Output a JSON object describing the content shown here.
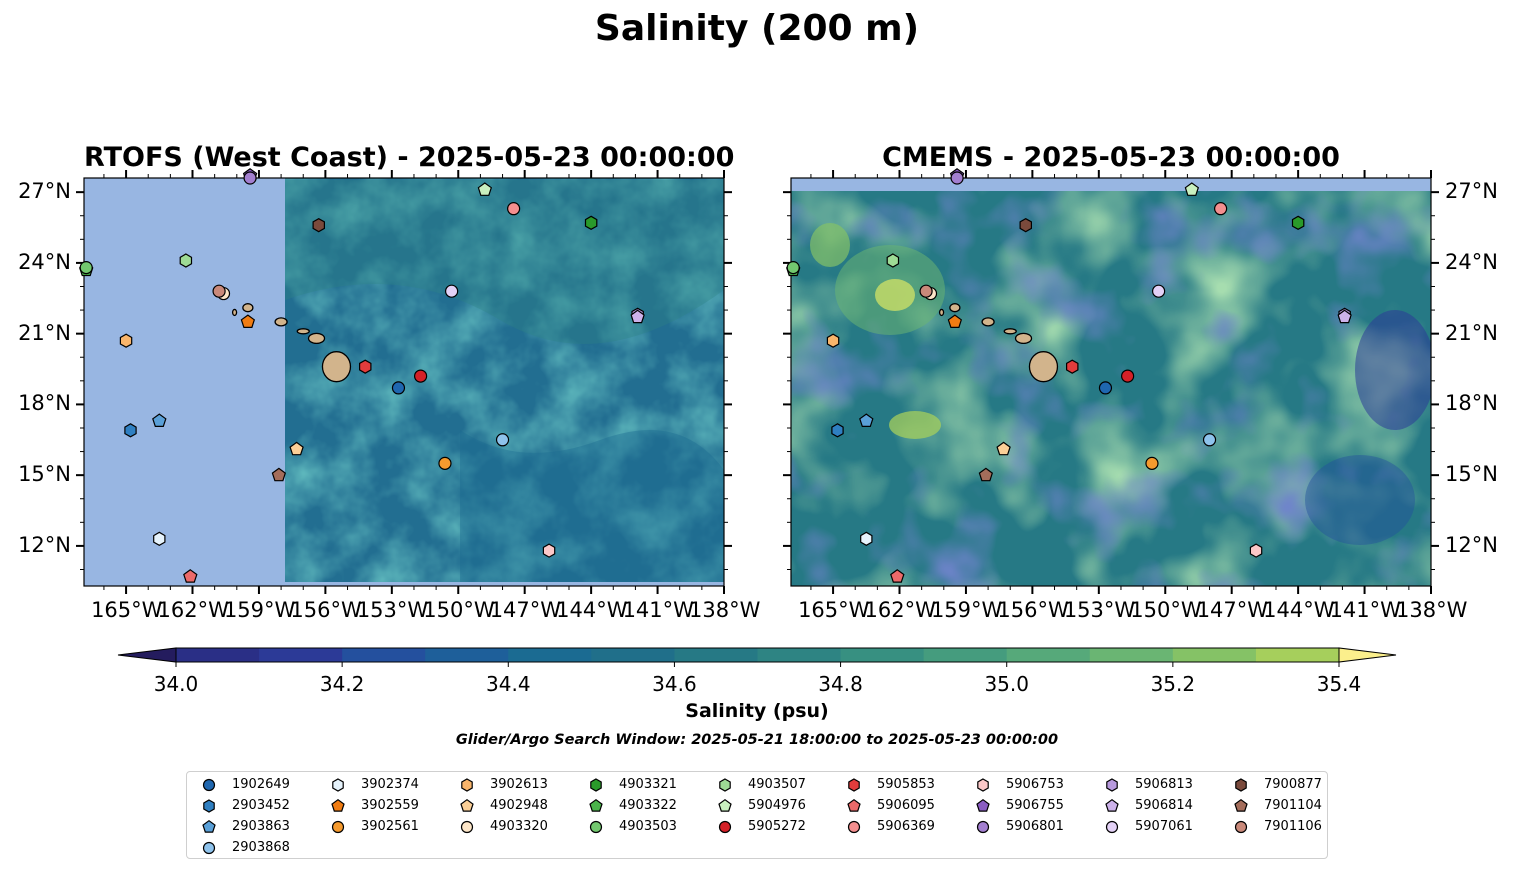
{
  "title": "Salinity (200 m)",
  "panels": [
    {
      "title": "RTOFS (West Coast) - 2025-05-23 00:00:00"
    },
    {
      "title": "CMEMS - 2025-05-23 00:00:00"
    }
  ],
  "x_ticks": [
    "165°W",
    "162°W",
    "159°W",
    "156°W",
    "153°W",
    "150°W",
    "147°W",
    "144°W",
    "141°W",
    "138°W"
  ],
  "y_ticks": [
    "27°N",
    "24°N",
    "21°N",
    "18°N",
    "15°N",
    "12°N"
  ],
  "colorbar": {
    "label": "Salinity (psu)",
    "ticks": [
      "34.0",
      "34.2",
      "34.4",
      "34.6",
      "34.8",
      "35.0",
      "35.2",
      "35.4"
    ],
    "range": [
      34.0,
      35.4
    ],
    "step": 0.1,
    "colors": [
      "#2a2f86",
      "#2c3a97",
      "#24509e",
      "#1e5f9a",
      "#1b6b92",
      "#206f8a",
      "#267985",
      "#2e8483",
      "#379081",
      "#459c7e",
      "#56a97a",
      "#6ab573",
      "#85c266",
      "#a6cf5c",
      "#cbdf66",
      "#f4ec7a"
    ],
    "under_color": "#241c5e",
    "over_color": "#fbef8c"
  },
  "search_window": "Glider/Argo Search Window: 2025-05-21 18:00:00 to 2025-05-23 00:00:00",
  "legend": [
    {
      "id": "1902649",
      "marker": "circle",
      "color": "#1f67b0"
    },
    {
      "id": "2903452",
      "marker": "hexagon",
      "color": "#2f7fc1"
    },
    {
      "id": "2903863",
      "marker": "pentagon",
      "color": "#5aa0d8"
    },
    {
      "id": "2903868",
      "marker": "circle",
      "color": "#8fc3ec"
    },
    {
      "id": "3902374",
      "marker": "hexagon",
      "color": "#e6f3fc"
    },
    {
      "id": "3902559",
      "marker": "pentagon",
      "color": "#f07c12"
    },
    {
      "id": "3902561",
      "marker": "circle",
      "color": "#f59a2e"
    },
    {
      "id": "3902613",
      "marker": "hexagon",
      "color": "#f9b56b"
    },
    {
      "id": "4902948",
      "marker": "pentagon",
      "color": "#fbcf97"
    },
    {
      "id": "4903320",
      "marker": "circle",
      "color": "#fde6c8"
    },
    {
      "id": "4903321",
      "marker": "hexagon",
      "color": "#2a9a2a"
    },
    {
      "id": "4903322",
      "marker": "pentagon",
      "color": "#4bb34b"
    },
    {
      "id": "4903503",
      "marker": "circle",
      "color": "#73c86f"
    },
    {
      "id": "4903507",
      "marker": "hexagon",
      "color": "#9edb95"
    },
    {
      "id": "5904976",
      "marker": "pentagon",
      "color": "#c9f0bf"
    },
    {
      "id": "5905272",
      "marker": "circle",
      "color": "#d42027"
    },
    {
      "id": "5905853",
      "marker": "hexagon",
      "color": "#e23c3c"
    },
    {
      "id": "5906095",
      "marker": "pentagon",
      "color": "#ec6a6a"
    },
    {
      "id": "5906369",
      "marker": "circle",
      "color": "#f48f8f"
    },
    {
      "id": "5906753",
      "marker": "hexagon",
      "color": "#fbc8c8"
    },
    {
      "id": "5906755",
      "marker": "pentagon",
      "color": "#8a5cc2"
    },
    {
      "id": "5906801",
      "marker": "circle",
      "color": "#a37fd0"
    },
    {
      "id": "5906813",
      "marker": "hexagon",
      "color": "#b89ade"
    },
    {
      "id": "5906814",
      "marker": "pentagon",
      "color": "#cdb2ea"
    },
    {
      "id": "5907061",
      "marker": "circle",
      "color": "#e3d1f6"
    },
    {
      "id": "7900877",
      "marker": "hexagon",
      "color": "#7a4a3c"
    },
    {
      "id": "7901104",
      "marker": "pentagon",
      "color": "#a46d5b"
    },
    {
      "id": "7901106",
      "marker": "circle",
      "color": "#c9897a"
    }
  ],
  "floats": [
    {
      "id": "1902649",
      "lon": -152.7,
      "lat": 18.7
    },
    {
      "id": "2903452",
      "lon": -164.8,
      "lat": 16.9
    },
    {
      "id": "2903863",
      "lon": -163.5,
      "lat": 17.3
    },
    {
      "id": "2903868",
      "lon": -148.0,
      "lat": 16.5
    },
    {
      "id": "3902374",
      "lon": -163.5,
      "lat": 12.3
    },
    {
      "id": "3902559",
      "lon": -159.5,
      "lat": 21.5
    },
    {
      "id": "3902561",
      "lon": -150.6,
      "lat": 15.5
    },
    {
      "id": "3902613",
      "lon": -165.0,
      "lat": 20.7
    },
    {
      "id": "4902948",
      "lon": -157.3,
      "lat": 16.1
    },
    {
      "id": "4903320",
      "lon": -160.6,
      "lat": 22.7
    },
    {
      "id": "4903321",
      "lon": -144.0,
      "lat": 25.7
    },
    {
      "id": "4903322",
      "lon": -166.8,
      "lat": 23.7
    },
    {
      "id": "4903503",
      "lon": -166.8,
      "lat": 23.8
    },
    {
      "id": "4903507",
      "lon": -162.3,
      "lat": 24.1
    },
    {
      "id": "5904976",
      "lon": -148.8,
      "lat": 27.1
    },
    {
      "id": "5905272",
      "lon": -151.7,
      "lat": 19.2
    },
    {
      "id": "5905853",
      "lon": -154.2,
      "lat": 19.6
    },
    {
      "id": "5906095",
      "lon": -162.1,
      "lat": 10.7
    },
    {
      "id": "5906369",
      "lon": -147.5,
      "lat": 26.3
    },
    {
      "id": "5906753",
      "lon": -145.9,
      "lat": 11.8
    },
    {
      "id": "5906755",
      "lon": -159.4,
      "lat": 27.7
    },
    {
      "id": "5906801",
      "lon": -159.4,
      "lat": 27.6
    },
    {
      "id": "5906813",
      "lon": -141.9,
      "lat": 21.8
    },
    {
      "id": "5906814",
      "lon": -141.9,
      "lat": 21.7
    },
    {
      "id": "5907061",
      "lon": -150.3,
      "lat": 22.8
    },
    {
      "id": "7900877",
      "lon": -156.3,
      "lat": 25.6
    },
    {
      "id": "7901104",
      "lon": -158.1,
      "lat": 15.0
    },
    {
      "id": "7901106",
      "lon": -160.8,
      "lat": 22.8
    }
  ]
}
